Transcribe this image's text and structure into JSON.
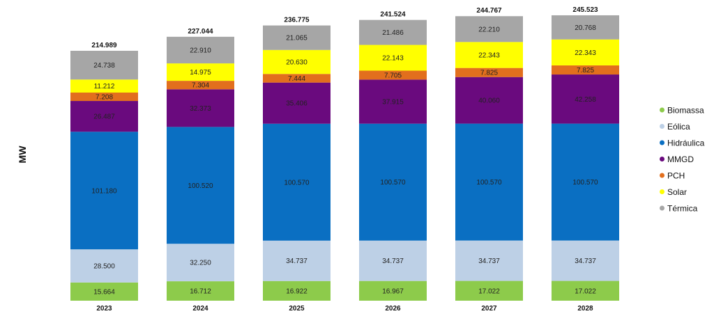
{
  "chart_data": {
    "type": "bar",
    "stacked": true,
    "title": "",
    "xlabel": "",
    "ylabel": "MW",
    "grid": false,
    "legend_position": "right",
    "categories": [
      "2023",
      "2024",
      "2025",
      "2026",
      "2027",
      "2028"
    ],
    "totals": [
      "214.989",
      "227.044",
      "236.775",
      "241.524",
      "244.767",
      "245.523"
    ],
    "series": [
      {
        "name": "Biomassa",
        "color": "#8DCB4B",
        "values": [
          15.664,
          16.712,
          16.922,
          16.967,
          17.022,
          17.022
        ],
        "labels": [
          "15.664",
          "16.712",
          "16.922",
          "16.967",
          "17.022",
          "17.022"
        ]
      },
      {
        "name": "Eólica",
        "color": "#BDD0E6",
        "values": [
          28.5,
          32.25,
          34.737,
          34.737,
          34.737,
          34.737
        ],
        "labels": [
          "28.500",
          "32.250",
          "34.737",
          "34.737",
          "34.737",
          "34.737"
        ]
      },
      {
        "name": "Hidráulica",
        "color": "#0A6FC2",
        "values": [
          101.18,
          100.52,
          100.57,
          100.57,
          100.57,
          100.57
        ],
        "labels": [
          "101.180",
          "100.520",
          "100.570",
          "100.570",
          "100.570",
          "100.570"
        ]
      },
      {
        "name": "MMGD",
        "color": "#6A0A7E",
        "values": [
          26.487,
          32.373,
          35.406,
          37.915,
          40.06,
          42.258
        ],
        "labels": [
          "26.487",
          "32.373",
          "35.406",
          "37.915",
          "40.060",
          "42.258"
        ]
      },
      {
        "name": "PCH",
        "color": "#E26F1D",
        "values": [
          7.208,
          7.304,
          7.444,
          7.705,
          7.825,
          7.825
        ],
        "labels": [
          "7.208",
          "7.304",
          "7.444",
          "7.705",
          "7.825",
          "7.825"
        ]
      },
      {
        "name": "Solar",
        "color": "#FFFF00",
        "values": [
          11.212,
          14.975,
          20.63,
          22.143,
          22.343,
          22.343
        ],
        "labels": [
          "11.212",
          "14.975",
          "20.630",
          "22.143",
          "22.343",
          "22.343"
        ]
      },
      {
        "name": "Térmica",
        "color": "#A6A6A6",
        "values": [
          24.738,
          22.91,
          21.065,
          21.486,
          22.21,
          20.768
        ],
        "labels": [
          "24.738",
          "22.910",
          "21.065",
          "21.486",
          "22.210",
          "20.768"
        ]
      }
    ]
  }
}
